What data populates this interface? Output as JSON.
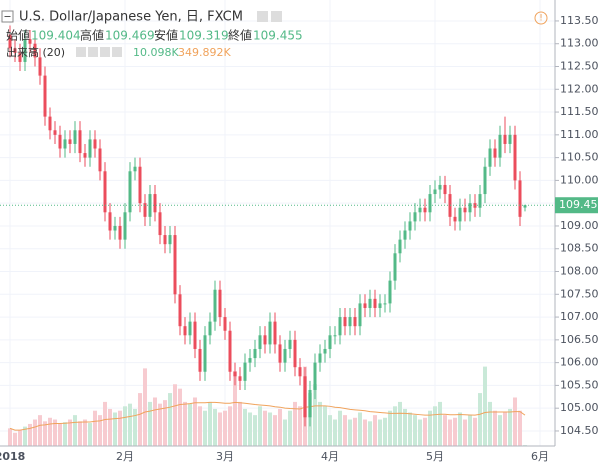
{
  "chart_data": {
    "type": "candlestick",
    "title": "U.S. Dollar/Japanese Yen, 日, FXCM",
    "ohlc_labels": [
      "始値",
      "高値",
      "安値",
      "終値"
    ],
    "volume_title": "出来高 (20)",
    "volume_label": "10.098K",
    "volume_ma_label": "349.892K",
    "up_color": "#53b987",
    "down_color": "#eb4d5c",
    "volume_up_color": "#c9e9d8",
    "volume_down_color": "#f7cbd0",
    "volume_ma_color": "#f0a35c",
    "grid": true,
    "categories": [
      "2018",
      null,
      null,
      null,
      null,
      null,
      null,
      null,
      null,
      null,
      null,
      null,
      null,
      null,
      null,
      null,
      null,
      null,
      null,
      null,
      null,
      null,
      null,
      "2月",
      null,
      null,
      null,
      null,
      null,
      null,
      null,
      null,
      null,
      null,
      null,
      null,
      null,
      null,
      null,
      null,
      null,
      null,
      null,
      "3月",
      null,
      null,
      null,
      null,
      null,
      null,
      null,
      null,
      null,
      null,
      null,
      null,
      null,
      null,
      null,
      null,
      null,
      null,
      null,
      null,
      "4月",
      null,
      null,
      null,
      null,
      null,
      null,
      null,
      null,
      null,
      null,
      null,
      null,
      null,
      null,
      null,
      null,
      null,
      null,
      null,
      null,
      "5月",
      null,
      null,
      null,
      null,
      null,
      null,
      null,
      null,
      null,
      null,
      null,
      null,
      null,
      null,
      null,
      null,
      null,
      null,
      null,
      null,
      "6月"
    ],
    "open": [
      113.2,
      112.9,
      112.8,
      112.6,
      113.1,
      113.0,
      112.7,
      112.3,
      111.4,
      111.1,
      111.0,
      110.7,
      110.9,
      110.8,
      111.1,
      110.6,
      110.5,
      110.9,
      110.7,
      110.2,
      109.3,
      108.9,
      109.0,
      108.7,
      109.3,
      110.2,
      110.3,
      109.5,
      109.2,
      109.7,
      109.3,
      108.8,
      108.6,
      108.8,
      107.5,
      106.8,
      106.6,
      106.9,
      106.3,
      105.8,
      106.6,
      106.9,
      107.6,
      107.0,
      106.7,
      105.8,
      105.7,
      105.6,
      106.0,
      106.1,
      106.3,
      106.6,
      106.4,
      106.9,
      106.4,
      106.0,
      106.3,
      106.5,
      105.9,
      105.7,
      104.8,
      105.4,
      106.0,
      106.2,
      106.3,
      106.6,
      106.6,
      107.0,
      106.8,
      107.0,
      106.8,
      107.3,
      107.2,
      107.4,
      107.2,
      107.3,
      107.3,
      107.8,
      108.4,
      108.7,
      108.9,
      109.1,
      109.3,
      109.4,
      109.3,
      109.7,
      109.8,
      109.9,
      109.7,
      109.2,
      109.1,
      109.4,
      109.3,
      109.5,
      109.4,
      109.7,
      110.3,
      110.7,
      110.5,
      111.0,
      110.8,
      111.0,
      110.0,
      109.404,
      null,
      null,
      null
    ],
    "high": [
      113.4,
      113.1,
      113.0,
      113.3,
      113.3,
      113.2,
      112.9,
      112.5,
      111.6,
      111.3,
      111.2,
      111.1,
      111.1,
      111.3,
      111.3,
      110.8,
      111.1,
      111.1,
      110.9,
      110.4,
      109.5,
      109.2,
      109.2,
      109.5,
      110.4,
      110.5,
      110.5,
      109.7,
      109.9,
      109.9,
      109.5,
      109.0,
      109.0,
      109.0,
      107.7,
      107.0,
      107.1,
      107.1,
      106.5,
      106.8,
      107.1,
      107.8,
      107.8,
      107.2,
      106.9,
      106.0,
      105.9,
      106.2,
      106.3,
      106.5,
      106.8,
      106.8,
      107.1,
      107.1,
      106.6,
      106.5,
      106.7,
      106.7,
      106.1,
      105.9,
      105.6,
      106.2,
      106.4,
      106.5,
      106.8,
      106.8,
      107.2,
      107.2,
      107.2,
      107.2,
      107.5,
      107.5,
      107.6,
      107.6,
      107.5,
      107.5,
      108.0,
      108.6,
      108.9,
      109.1,
      109.3,
      109.5,
      109.6,
      109.6,
      109.9,
      110.0,
      110.1,
      110.1,
      109.9,
      109.4,
      109.6,
      109.6,
      109.7,
      109.7,
      109.9,
      110.5,
      110.9,
      110.9,
      111.2,
      111.4,
      111.2,
      111.2,
      110.2,
      109.469,
      null,
      null,
      null
    ],
    "low": [
      112.7,
      112.6,
      112.4,
      112.4,
      112.8,
      112.5,
      112.1,
      111.2,
      110.9,
      110.8,
      110.5,
      110.5,
      110.6,
      110.6,
      110.4,
      110.3,
      110.3,
      110.5,
      110.0,
      109.1,
      108.7,
      108.7,
      108.5,
      108.5,
      109.1,
      110.0,
      109.3,
      109.0,
      109.0,
      109.1,
      108.6,
      108.4,
      108.4,
      107.3,
      106.6,
      106.4,
      106.4,
      106.1,
      105.6,
      105.6,
      106.4,
      106.7,
      106.8,
      106.5,
      105.6,
      105.5,
      105.4,
      105.4,
      105.8,
      105.9,
      106.1,
      106.2,
      106.2,
      106.2,
      105.8,
      105.8,
      106.1,
      105.7,
      105.5,
      104.6,
      104.6,
      105.2,
      105.8,
      106.0,
      106.1,
      106.4,
      106.4,
      106.6,
      106.6,
      106.6,
      106.6,
      107.0,
      107.0,
      107.0,
      107.0,
      107.1,
      107.1,
      107.6,
      108.2,
      108.5,
      108.7,
      108.9,
      109.1,
      109.1,
      109.1,
      109.5,
      109.6,
      109.5,
      109.0,
      108.9,
      108.9,
      109.1,
      109.1,
      109.2,
      109.2,
      109.5,
      110.1,
      110.3,
      110.3,
      110.6,
      110.6,
      109.8,
      109.0,
      109.319,
      null,
      null,
      null
    ],
    "close": [
      112.9,
      112.8,
      112.6,
      113.1,
      113.0,
      112.7,
      112.3,
      111.4,
      111.1,
      111.0,
      110.7,
      110.9,
      110.8,
      111.1,
      110.6,
      110.5,
      110.9,
      110.7,
      110.2,
      109.3,
      108.9,
      109.0,
      108.7,
      109.3,
      110.2,
      110.3,
      109.5,
      109.2,
      109.7,
      109.3,
      108.8,
      108.6,
      108.8,
      107.5,
      106.8,
      106.6,
      106.9,
      106.3,
      105.8,
      106.6,
      106.9,
      107.6,
      107.0,
      106.7,
      105.8,
      105.7,
      105.6,
      106.0,
      106.1,
      106.3,
      106.6,
      106.4,
      106.9,
      106.4,
      106.0,
      106.3,
      106.5,
      105.9,
      105.7,
      104.8,
      105.4,
      106.0,
      106.2,
      106.3,
      106.6,
      106.6,
      107.0,
      106.8,
      107.0,
      106.8,
      107.3,
      107.2,
      107.4,
      107.2,
      107.3,
      107.3,
      107.8,
      108.4,
      108.7,
      108.9,
      109.1,
      109.3,
      109.4,
      109.3,
      109.7,
      109.8,
      109.9,
      109.7,
      109.2,
      109.1,
      109.4,
      109.3,
      109.5,
      109.4,
      109.7,
      110.3,
      110.7,
      110.5,
      111.0,
      110.8,
      111.0,
      110.0,
      109.2,
      109.455,
      null,
      null,
      null
    ],
    "volume": [
      200,
      150,
      180,
      220,
      250,
      300,
      350,
      280,
      320,
      300,
      250,
      270,
      300,
      350,
      280,
      300,
      260,
      400,
      350,
      500,
      420,
      380,
      400,
      450,
      480,
      420,
      600,
      880,
      500,
      550,
      480,
      520,
      600,
      700,
      650,
      500,
      480,
      550,
      450,
      400,
      500,
      420,
      380,
      400,
      450,
      850,
      500,
      420,
      380,
      350,
      450,
      400,
      380,
      350,
      420,
      300,
      400,
      500,
      450,
      900,
      600,
      700,
      500,
      450,
      350,
      300,
      400,
      350,
      300,
      320,
      380,
      300,
      280,
      350,
      300,
      320,
      400,
      450,
      500,
      420,
      380,
      350,
      300,
      320,
      400,
      450,
      500,
      350,
      300,
      320,
      380,
      300,
      350,
      320,
      600,
      900,
      500,
      400,
      350,
      380,
      420,
      550,
      400,
      10.098,
      null,
      null,
      null
    ],
    "volume_ma": [
      200,
      180,
      180,
      190,
      200,
      215,
      235,
      240,
      250,
      255,
      255,
      258,
      262,
      268,
      270,
      272,
      272,
      280,
      285,
      300,
      305,
      310,
      315,
      325,
      335,
      345,
      360,
      385,
      395,
      410,
      420,
      430,
      440,
      455,
      470,
      475,
      480,
      490,
      490,
      490,
      495,
      495,
      490,
      485,
      485,
      495,
      490,
      485,
      478,
      470,
      465,
      460,
      455,
      445,
      440,
      430,
      425,
      422,
      420,
      440,
      445,
      455,
      455,
      455,
      450,
      440,
      435,
      425,
      415,
      410,
      405,
      400,
      390,
      385,
      380,
      375,
      370,
      370,
      372,
      370,
      365,
      360,
      355,
      350,
      350,
      355,
      360,
      360,
      355,
      355,
      357,
      355,
      352,
      350,
      360,
      380,
      385,
      385,
      385,
      385,
      385,
      390,
      390,
      349.892,
      null,
      null,
      null
    ],
    "ylim": [
      104.17,
      113.85
    ],
    "yticks": [
      {
        "value": 104.5,
        "label": "104.500"
      },
      {
        "value": 105,
        "label": "105.000"
      },
      {
        "value": 105.5,
        "label": "105.500"
      },
      {
        "value": 106,
        "label": "106.000"
      },
      {
        "value": 106.5,
        "label": "106.500"
      },
      {
        "value": 107,
        "label": "107.000"
      },
      {
        "value": 107.5,
        "label": "107.500"
      },
      {
        "value": 108,
        "label": "108.000"
      },
      {
        "value": 108.5,
        "label": "108.500"
      },
      {
        "value": 109,
        "label": "109.000"
      },
      {
        "value": 109.5,
        "label": "109.500"
      },
      {
        "value": 110,
        "label": "110.000"
      },
      {
        "value": 110.5,
        "label": "110.500"
      },
      {
        "value": 111,
        "label": "111.000"
      },
      {
        "value": 111.5,
        "label": "111.500"
      },
      {
        "value": 112,
        "label": "112.000"
      },
      {
        "value": 112.5,
        "label": "112.500"
      },
      {
        "value": 113,
        "label": "113.000"
      },
      {
        "value": 113.5,
        "label": "113.500"
      }
    ],
    "y2lim": [
      0,
      5000
    ]
  }
}
